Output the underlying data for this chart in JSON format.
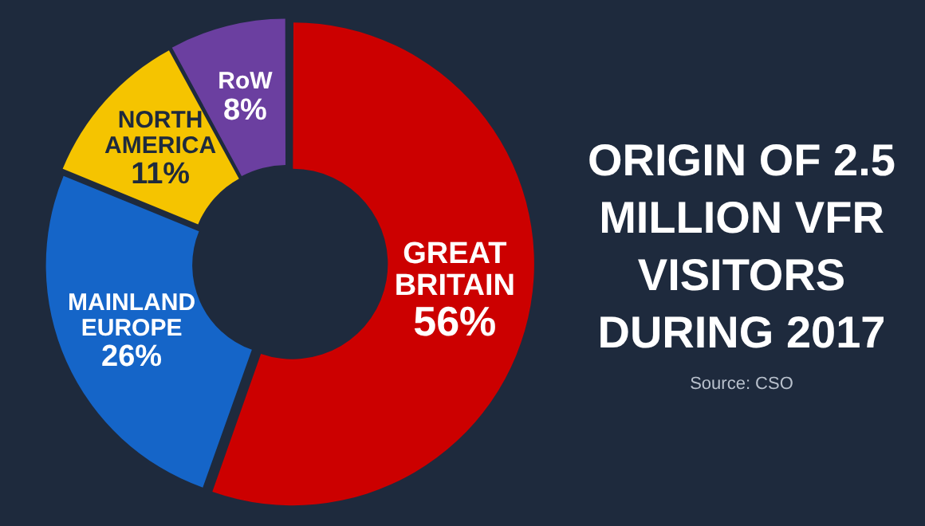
{
  "chart_data": {
    "type": "donut",
    "title": "ORIGIN OF 2.5 MILLION VFR VISITORS DURING 2017",
    "categories": [
      "GREAT BRITAIN",
      "MAINLAND EUROPE",
      "NORTH AMERICA",
      "RoW"
    ],
    "values": [
      56,
      26,
      11,
      8
    ],
    "value_labels": [
      "56%",
      "26%",
      "11%",
      "8%"
    ],
    "colors": [
      "#cc0000",
      "#1565c8",
      "#f5c400",
      "#6b3fa0"
    ],
    "annotations": [
      "Source: CSO"
    ]
  }
}
